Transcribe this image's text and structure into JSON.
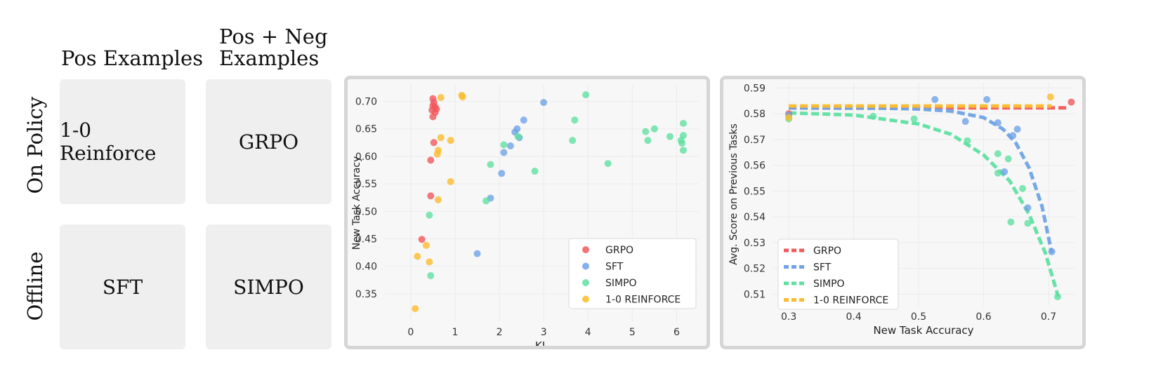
{
  "grid": {
    "col_headers": [
      "Pos Examples",
      "Pos + Neg Examples"
    ],
    "row_headers": [
      "On Policy",
      "Offline"
    ],
    "cells": [
      [
        "1-0 Reinforce",
        "GRPO"
      ],
      [
        "SFT",
        "SIMPO"
      ]
    ]
  },
  "colors": {
    "GRPO": "#f1585b",
    "SFT": "#6fa3e6",
    "SIMPO": "#5fe0a1",
    "REINFORCE": "#fbbc2c"
  },
  "chart_data": [
    {
      "type": "scatter",
      "title": "",
      "xlabel": "KL",
      "ylabel": "New Task Accuracy",
      "xlim": [
        -0.6,
        6.5
      ],
      "ylim": [
        0.3,
        0.73
      ],
      "xticks": [
        0,
        1,
        2,
        3,
        4,
        5,
        6
      ],
      "yticks": [
        0.35,
        0.4,
        0.45,
        0.5,
        0.55,
        0.6,
        0.65,
        0.7
      ],
      "legend_position": "bottom-right",
      "series": [
        {
          "name": "GRPO",
          "color": "#f1585b",
          "points": [
            [
              0.5,
              0.705
            ],
            [
              0.52,
              0.698
            ],
            [
              0.5,
              0.692
            ],
            [
              0.55,
              0.69
            ],
            [
              0.58,
              0.686
            ],
            [
              0.48,
              0.684
            ],
            [
              0.55,
              0.68
            ],
            [
              0.5,
              0.672
            ],
            [
              0.52,
              0.625
            ],
            [
              0.45,
              0.593
            ],
            [
              0.45,
              0.528
            ],
            [
              0.25,
              0.449
            ]
          ]
        },
        {
          "name": "SFT",
          "color": "#6fa3e6",
          "points": [
            [
              3.0,
              0.698
            ],
            [
              2.55,
              0.666
            ],
            [
              2.4,
              0.65
            ],
            [
              2.35,
              0.644
            ],
            [
              2.45,
              0.634
            ],
            [
              2.25,
              0.619
            ],
            [
              2.1,
              0.607
            ],
            [
              2.05,
              0.569
            ],
            [
              1.8,
              0.524
            ],
            [
              1.5,
              0.423
            ]
          ]
        },
        {
          "name": "SIMPO",
          "color": "#5fe0a1",
          "points": [
            [
              3.95,
              0.712
            ],
            [
              3.7,
              0.666
            ],
            [
              3.65,
              0.629
            ],
            [
              5.3,
              0.645
            ],
            [
              5.5,
              0.65
            ],
            [
              5.35,
              0.629
            ],
            [
              5.85,
              0.636
            ],
            [
              6.15,
              0.66
            ],
            [
              6.15,
              0.638
            ],
            [
              6.1,
              0.629
            ],
            [
              6.12,
              0.624
            ],
            [
              6.15,
              0.611
            ],
            [
              2.42,
              0.636
            ],
            [
              2.1,
              0.621
            ],
            [
              1.8,
              0.585
            ],
            [
              2.8,
              0.573
            ],
            [
              4.45,
              0.587
            ],
            [
              1.7,
              0.519
            ],
            [
              0.42,
              0.493
            ],
            [
              0.45,
              0.383
            ]
          ]
        },
        {
          "name": "1-0 REINFORCE",
          "color": "#fbbc2c",
          "points": [
            [
              1.15,
              0.711
            ],
            [
              1.17,
              0.708
            ],
            [
              0.68,
              0.707
            ],
            [
              0.68,
              0.634
            ],
            [
              0.9,
              0.629
            ],
            [
              0.62,
              0.611
            ],
            [
              0.6,
              0.604
            ],
            [
              0.9,
              0.554
            ],
            [
              0.62,
              0.521
            ],
            [
              0.35,
              0.438
            ],
            [
              0.42,
              0.408
            ],
            [
              0.15,
              0.418
            ],
            [
              0.1,
              0.323
            ]
          ]
        }
      ]
    },
    {
      "type": "scatter",
      "title": "",
      "xlabel": "New Task Accuracy",
      "ylabel": "Avg. Score on Previous Tasks",
      "xlim": [
        0.275,
        0.74
      ],
      "ylim": [
        0.5055,
        0.592
      ],
      "xticks": [
        0.3,
        0.4,
        0.5,
        0.6,
        0.7
      ],
      "yticks": [
        0.51,
        0.52,
        0.53,
        0.54,
        0.55,
        0.56,
        0.57,
        0.58,
        0.59
      ],
      "legend_position": "bottom-left",
      "series": [
        {
          "name": "GRPO",
          "color": "#f1585b",
          "points": [
            [
              0.3,
              0.58
            ],
            [
              0.735,
              0.5845
            ]
          ],
          "fit": [
            [
              0.3,
              0.5823
            ],
            [
              0.73,
              0.5823
            ]
          ]
        },
        {
          "name": "SFT",
          "color": "#6fa3e6",
          "points": [
            [
              0.3,
              0.5795
            ],
            [
              0.525,
              0.5855
            ],
            [
              0.605,
              0.5855
            ],
            [
              0.572,
              0.577
            ],
            [
              0.622,
              0.5765
            ],
            [
              0.652,
              0.574
            ],
            [
              0.645,
              0.5715
            ],
            [
              0.632,
              0.5575
            ],
            [
              0.668,
              0.5435
            ],
            [
              0.705,
              0.5265
            ]
          ],
          "fit": [
            [
              0.3,
              0.5822
            ],
            [
              0.45,
              0.5821
            ],
            [
              0.5,
              0.5818
            ],
            [
              0.55,
              0.581
            ],
            [
              0.6,
              0.5785
            ],
            [
              0.63,
              0.574
            ],
            [
              0.65,
              0.5685
            ],
            [
              0.67,
              0.559
            ],
            [
              0.69,
              0.544
            ],
            [
              0.705,
              0.526
            ]
          ]
        },
        {
          "name": "SIMPO",
          "color": "#5fe0a1",
          "points": [
            [
              0.3,
              0.578
            ],
            [
              0.43,
              0.579
            ],
            [
              0.493,
              0.578
            ],
            [
              0.575,
              0.5695
            ],
            [
              0.622,
              0.5645
            ],
            [
              0.638,
              0.5625
            ],
            [
              0.642,
              0.538
            ],
            [
              0.622,
              0.557
            ],
            [
              0.66,
              0.551
            ],
            [
              0.668,
              0.5375
            ],
            [
              0.714,
              0.509
            ]
          ],
          "fit": [
            [
              0.3,
              0.5803
            ],
            [
              0.4,
              0.5795
            ],
            [
              0.5,
              0.576
            ],
            [
              0.55,
              0.572
            ],
            [
              0.6,
              0.564
            ],
            [
              0.64,
              0.554
            ],
            [
              0.67,
              0.541
            ],
            [
              0.695,
              0.526
            ],
            [
              0.715,
              0.509
            ]
          ]
        },
        {
          "name": "1-0 REINFORCE",
          "color": "#fbbc2c",
          "points": [
            [
              0.3,
              0.5785
            ],
            [
              0.703,
              0.5865
            ]
          ],
          "fit": [
            [
              0.3,
              0.583
            ],
            [
              0.705,
              0.583
            ]
          ]
        }
      ]
    }
  ]
}
